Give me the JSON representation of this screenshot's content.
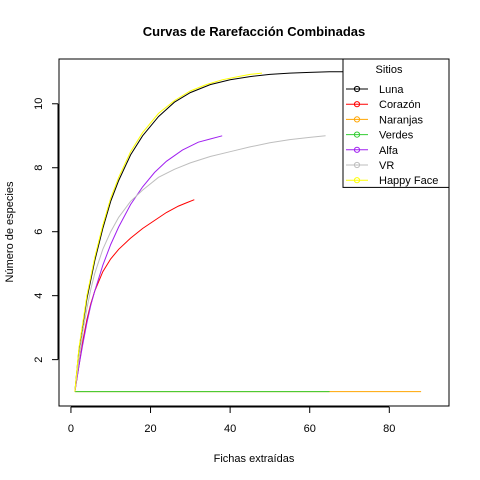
{
  "chart_data": {
    "type": "line",
    "title": "Curvas de Rarefacción Combinadas",
    "xlabel": "Fichas extraídas",
    "ylabel": "Número de especies",
    "xlim": [
      -3,
      95
    ],
    "ylim": [
      0.55,
      11.4
    ],
    "xticks": [
      0,
      20,
      40,
      60,
      80
    ],
    "yticks": [
      2,
      4,
      6,
      8,
      10
    ],
    "grid": false,
    "legend": {
      "title": "Sitios",
      "position": "top-right"
    },
    "series": [
      {
        "name": "Luna",
        "color": "#000000",
        "x": [
          1,
          2,
          4,
          6,
          8,
          10,
          12,
          15,
          18,
          22,
          26,
          30,
          35,
          40,
          45,
          50,
          55,
          60,
          65,
          70
        ],
        "y": [
          1,
          2.3,
          3.9,
          5.1,
          6.1,
          6.95,
          7.6,
          8.4,
          9.0,
          9.6,
          10.05,
          10.35,
          10.6,
          10.75,
          10.85,
          10.92,
          10.96,
          10.98,
          11.0,
          11.0
        ]
      },
      {
        "name": "Corazón",
        "color": "#ff0000",
        "x": [
          1,
          2,
          3,
          4,
          5,
          6,
          8,
          10,
          12,
          15,
          18,
          21,
          24,
          27,
          29,
          31
        ],
        "y": [
          1,
          1.8,
          2.6,
          3.25,
          3.75,
          4.15,
          4.75,
          5.15,
          5.45,
          5.8,
          6.1,
          6.35,
          6.6,
          6.8,
          6.9,
          7.0
        ]
      },
      {
        "name": "Naranjas",
        "color": "#ffa500",
        "x": [
          1,
          88
        ],
        "y": [
          1,
          1
        ]
      },
      {
        "name": "Verdes",
        "color": "#32cd32",
        "x": [
          1,
          65
        ],
        "y": [
          1,
          1
        ]
      },
      {
        "name": "Alfa",
        "color": "#a020f0",
        "x": [
          1,
          2,
          3,
          4,
          5,
          6,
          8,
          10,
          12,
          15,
          18,
          21,
          24,
          28,
          32,
          35,
          38
        ],
        "y": [
          1,
          1.8,
          2.5,
          3.15,
          3.7,
          4.15,
          4.95,
          5.6,
          6.15,
          6.85,
          7.4,
          7.85,
          8.2,
          8.55,
          8.8,
          8.9,
          9.0
        ]
      },
      {
        "name": "VR",
        "color": "#bebebe",
        "x": [
          1,
          2,
          3,
          4,
          5,
          6,
          8,
          10,
          12,
          15,
          18,
          22,
          26,
          30,
          35,
          40,
          45,
          50,
          55,
          60,
          64
        ],
        "y": [
          1,
          2.0,
          2.9,
          3.6,
          4.2,
          4.7,
          5.45,
          6.0,
          6.45,
          6.95,
          7.3,
          7.7,
          7.95,
          8.15,
          8.35,
          8.5,
          8.65,
          8.78,
          8.88,
          8.95,
          9.0
        ]
      },
      {
        "name": "Happy Face",
        "color": "#ffff00",
        "x": [
          1,
          2,
          4,
          6,
          8,
          10,
          12,
          15,
          18,
          22,
          26,
          30,
          34,
          38,
          42,
          45,
          48
        ],
        "y": [
          1,
          2.35,
          4.0,
          5.2,
          6.2,
          7.05,
          7.7,
          8.5,
          9.1,
          9.7,
          10.1,
          10.4,
          10.6,
          10.75,
          10.85,
          10.92,
          10.96
        ]
      }
    ]
  }
}
